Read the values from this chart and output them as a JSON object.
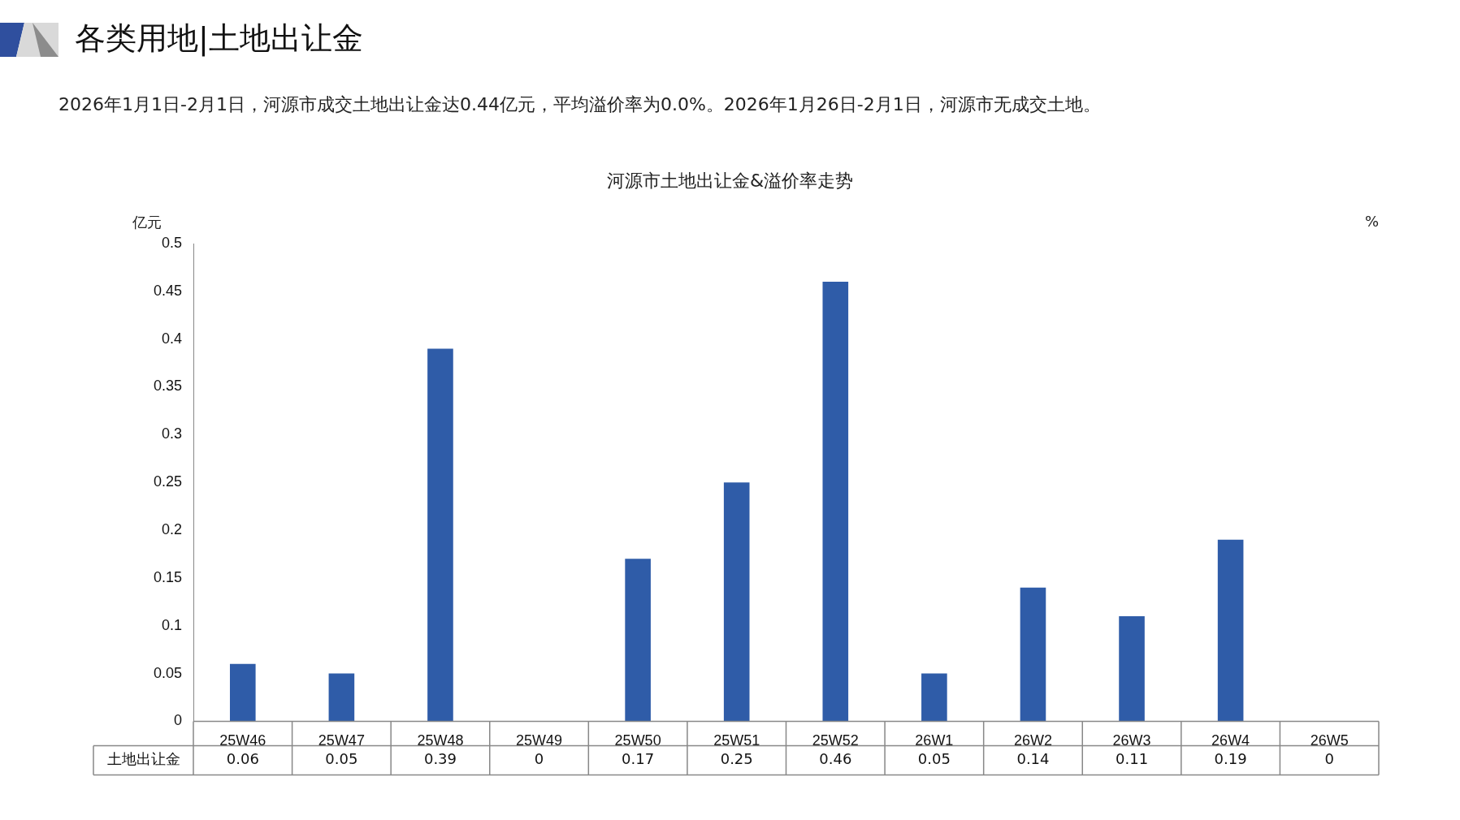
{
  "chart_data": {
    "type": "bar",
    "title": "河源市土地出让金&溢价率走势",
    "subtitle": "2026年1月1日-2月1日，河源市成交土地出让金达0.44亿元，平均溢价率为0.0%。2026年1月26日-2月1日，河源市无成交土地。",
    "annotations": [
      "各类用地|土地出让金"
    ],
    "ylabel": "亿元",
    "y2label": "%",
    "categories": [
      "25W46",
      "25W47",
      "25W48",
      "25W49",
      "25W50",
      "25W51",
      "25W52",
      "26W1",
      "26W2",
      "26W3",
      "26W4",
      "26W5"
    ],
    "series": [
      {
        "name": "土地出让金",
        "color": "#2f5ca8",
        "values": [
          0.06,
          0.05,
          0.39,
          0,
          0.17,
          0.25,
          0.46,
          0.05,
          0.14,
          0.11,
          0.19,
          0
        ]
      }
    ],
    "ylim": [
      0,
      0.5
    ],
    "yticks": [
      0,
      0.05,
      0.1,
      0.15,
      0.2,
      0.25,
      0.3,
      0.35,
      0.4,
      0.45,
      0.5
    ],
    "data_labels": true
  }
}
